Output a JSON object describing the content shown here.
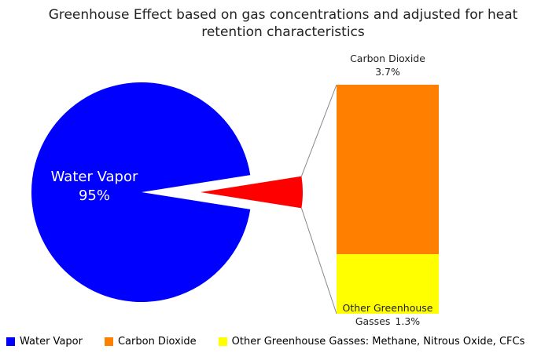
{
  "chart_data": {
    "type": "pie-of-bar",
    "title": "Greenhouse Effect based on gas concentrations and adjusted for heat retention characteristics",
    "categories": [
      "Water Vapor",
      "Carbon Dioxide",
      "Other Greenhouse Gasses: Methane, Nitrous Oxide, CFCs"
    ],
    "slice_labels": [
      "Water Vapor",
      "Carbon Dioxide",
      "Other Greenhouse Gasses"
    ],
    "values": [
      95,
      3.7,
      1.3
    ],
    "value_labels": [
      "95%",
      "3.7%",
      "1.3%"
    ],
    "colors": [
      "#0000ff",
      "#ff8000",
      "#ffff00"
    ],
    "group_color": "#ff0000"
  }
}
